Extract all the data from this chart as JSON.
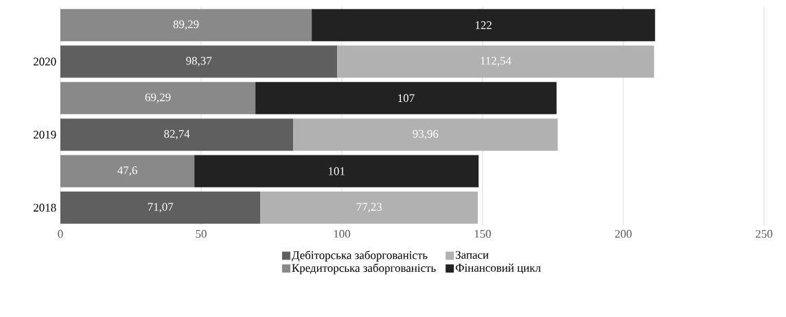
{
  "chart_data": {
    "type": "bar",
    "orientation": "horizontal",
    "stacked": true,
    "categories": [
      null,
      "2020",
      null,
      "2019",
      null,
      "2018"
    ],
    "series": [
      {
        "name": "Дебіторська заборгованість",
        "color": "#5f5f5f",
        "values": [
          null,
          98.37,
          null,
          82.74,
          null,
          71.07
        ],
        "value_labels": [
          null,
          "98,37",
          null,
          "82,74",
          null,
          "71,07"
        ]
      },
      {
        "name": "Запаси",
        "color": "#b1b1b1",
        "values": [
          null,
          112.54,
          null,
          93.96,
          null,
          77.23
        ],
        "value_labels": [
          null,
          "112,54",
          null,
          "93,96",
          null,
          "77,23"
        ]
      },
      {
        "name": "Кредиторська заборгованість",
        "color": "#898989",
        "values": [
          89.29,
          null,
          69.29,
          null,
          47.6,
          null
        ],
        "value_labels": [
          "89,29",
          null,
          "69,29",
          null,
          "47,6",
          null
        ]
      },
      {
        "name": "Фінансовий цикл",
        "color": "#222222",
        "values": [
          122,
          null,
          107,
          null,
          101,
          null
        ],
        "value_labels": [
          "122",
          null,
          "107",
          null,
          "101",
          null
        ]
      }
    ],
    "xlim": [
      0,
      250
    ],
    "xticks": [
      0,
      50,
      100,
      150,
      200,
      250
    ],
    "grid": "x",
    "legend": "bottom"
  }
}
